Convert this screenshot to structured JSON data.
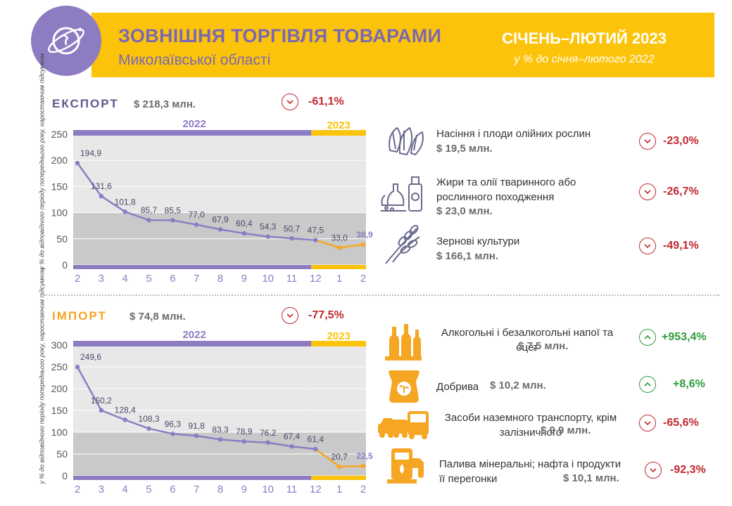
{
  "header": {
    "title": "ЗОВНІШНЯ ТОРГІВЛЯ ТОВАРАМИ",
    "subtitle": "Миколаївської області",
    "period": "СІЧЕНЬ–ЛЮТИЙ 2023",
    "period_note": "у % до січня–лютого 2022"
  },
  "export": {
    "label": "ЕКСПОРТ",
    "value": "$ 218,3 млн.",
    "change": "-61,1%",
    "change_dir": "down",
    "items": [
      {
        "name": "Насіння і плоди олійних рослин",
        "value": "$ 19,5 млн.",
        "change": "-23,0%",
        "dir": "down",
        "icon": "sunflower-seeds-icon"
      },
      {
        "name": "Жири та олії тваринного або рослинного походження",
        "value": "$ 23,0 млн.",
        "change": "-26,7%",
        "dir": "down",
        "icon": "oil-bottles-icon"
      },
      {
        "name": "Зернові культури",
        "value": "$ 166,1 млн.",
        "change": "-49,1%",
        "dir": "down",
        "icon": "wheat-icon"
      }
    ]
  },
  "import": {
    "label": "ІМПОРТ",
    "value": "$ 74,8 млн.",
    "change": "-77,5%",
    "change_dir": "down",
    "items": [
      {
        "name": "Алкогольні і безалкогольні напої та оцет",
        "value": "$ 7,5 млн.",
        "change": "+953,4%",
        "dir": "up",
        "icon": "bottles-icon"
      },
      {
        "name": "Добрива",
        "value": "$ 10,2 млн.",
        "change": "+8,6%",
        "dir": "up",
        "icon": "fertilizer-bag-icon"
      },
      {
        "name": "Засоби наземного транспорту, крім залізничного",
        "value": "$ 9,9 млн.",
        "change": "-65,6%",
        "dir": "down",
        "icon": "vehicles-icon"
      },
      {
        "name": "Палива мінеральні; нафта і продукти її перегонки",
        "value": "$ 10,1 млн.",
        "change": "-92,3%",
        "dir": "down",
        "icon": "fuel-pump-icon"
      }
    ]
  },
  "colors": {
    "purple": "#8e7cc3",
    "orange": "#f5a623",
    "yellow": "#fcc30b",
    "negative": "#c0282e",
    "positive": "#2e9b3a"
  },
  "chart_data": [
    {
      "type": "line",
      "ylabel": "у % до відповідного періоду попереднього року, наростаючим підсумком",
      "ylim": [
        0,
        250
      ],
      "yticks": [
        0,
        50,
        100,
        150,
        200,
        250
      ],
      "year_labels": [
        "2022",
        "2023"
      ],
      "categories": [
        "2",
        "3",
        "4",
        "5",
        "6",
        "7",
        "8",
        "9",
        "10",
        "11",
        "12",
        "1",
        "2"
      ],
      "values": [
        194.9,
        131.6,
        101.8,
        85.7,
        85.5,
        77.0,
        67.9,
        60.4,
        54.3,
        50.7,
        47.5,
        33.0,
        38.9
      ],
      "value_labels": [
        "194,9",
        "131,6",
        "101,8",
        "85,7",
        "85,5",
        "77,0",
        "67,9",
        "60,4",
        "54,3",
        "50,7",
        "47,5",
        "33,0",
        "38,9"
      ],
      "series_split_index": 10,
      "reference_line": 100
    },
    {
      "type": "line",
      "ylabel": "у % до відповідного періоду попереднього року, наростаючим підсумком",
      "ylim": [
        0,
        300
      ],
      "yticks": [
        0,
        50,
        100,
        150,
        200,
        250,
        300
      ],
      "year_labels": [
        "2022",
        "2023"
      ],
      "categories": [
        "2",
        "3",
        "4",
        "5",
        "6",
        "7",
        "8",
        "9",
        "10",
        "11",
        "12",
        "1",
        "2"
      ],
      "values": [
        249.6,
        150.2,
        128.4,
        108.3,
        96.3,
        91.8,
        83.3,
        78.9,
        76.2,
        67.4,
        61.4,
        20.7,
        22.5
      ],
      "value_labels": [
        "249,6",
        "150,2",
        "128,4",
        "108,3",
        "96,3",
        "91,8",
        "83,3",
        "78,9",
        "76,2",
        "67,4",
        "61,4",
        "20,7",
        "22,5"
      ],
      "series_split_index": 10,
      "reference_line": 100
    }
  ]
}
